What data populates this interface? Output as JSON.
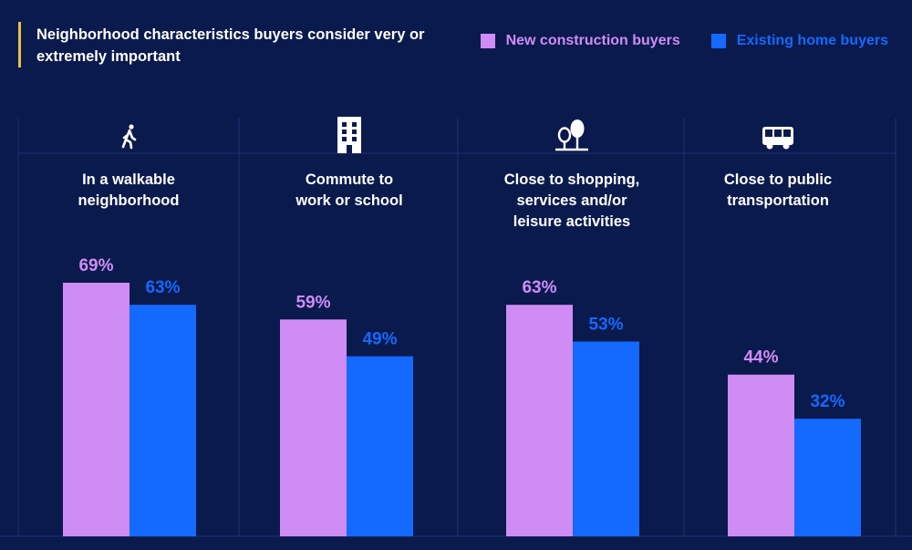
{
  "header": {
    "title": "Neighborhood characteristics buyers consider very or extremely important"
  },
  "colors": {
    "background": "#0a1a4d",
    "new_construction": "#cf8cf4",
    "existing_home": "#1469ff",
    "accent": "#e9c14a",
    "grid": "#1e3275"
  },
  "legend": [
    {
      "label": "New construction buyers",
      "color": "#cf8cf4"
    },
    {
      "label": "Existing home buyers",
      "color": "#1469ff"
    }
  ],
  "chart_data": {
    "type": "bar",
    "title": "Neighborhood characteristics buyers consider very or extremely important",
    "categories": [
      "In a walkable neighborhood",
      "Commute to work or school",
      "Close to shopping, services and/or leisure activities",
      "Close to public transportation"
    ],
    "category_label_lines": [
      [
        "In a walkable",
        "neighborhood"
      ],
      [
        "Commute to",
        "work or school"
      ],
      [
        "Close to shopping,",
        "services and/or",
        "leisure activities"
      ],
      [
        "Close to public",
        "transportation"
      ]
    ],
    "category_icons": [
      "walking-person-icon",
      "building-icon",
      "trees-icon",
      "bus-icon"
    ],
    "series": [
      {
        "name": "New construction buyers",
        "values": [
          69,
          59,
          63,
          44
        ],
        "labels": [
          "69%",
          "59%",
          "63%",
          "44%"
        ]
      },
      {
        "name": "Existing home buyers",
        "values": [
          63,
          49,
          53,
          32
        ],
        "labels": [
          "63%",
          "49%",
          "53%",
          "32%"
        ]
      }
    ],
    "ylim": [
      0,
      100
    ],
    "grid": false,
    "legend_position": "top-right"
  }
}
